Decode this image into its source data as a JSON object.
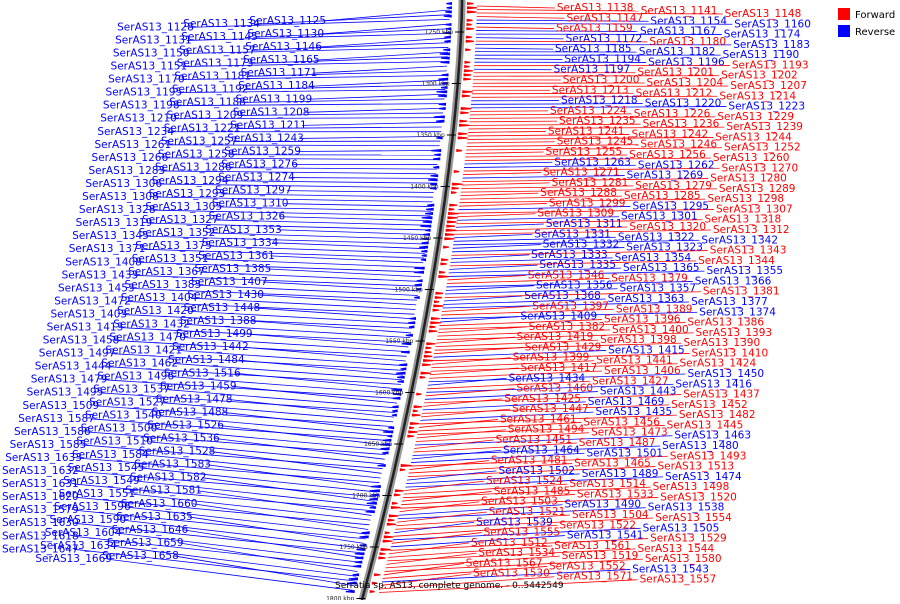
{
  "caption": "Serratia sp. AS13, complete genome. - 0..5442549",
  "legend": [
    {
      "label": "Forward",
      "color": "#ff0000"
    },
    {
      "label": "Reverse",
      "color": "#0000ff"
    }
  ],
  "colors": {
    "forward": "#ff0000",
    "reverse": "#0000ff",
    "backbone": "#444444"
  },
  "ticks": [
    "1250 kbp",
    "1300 kbp",
    "1350 kbp",
    "1400 kbp",
    "1450 kbp",
    "1500 kbp",
    "1550 kbp",
    "1600 kbp",
    "1650 kbp",
    "1700 kbp",
    "1750 kbp",
    "1800 kbp"
  ],
  "left_labels": [
    "SerAS13_1125",
    "SerAS13_1134",
    "SerAS13_1128",
    "SerAS13_1130",
    "SerAS13_1145",
    "SerAS13_1131",
    "SerAS13_1146",
    "SerAS13_1157",
    "SerAS13_1150",
    "SerAS13_1165",
    "SerAS13_1173",
    "SerAS13_1151",
    "SerAS13_1171",
    "SerAS13_1181",
    "SerAS13_1170",
    "SerAS13_1184",
    "SerAS13_1192",
    "SerAS13_1195",
    "SerAS13_1199",
    "SerAS13_1188",
    "SerAS13_1198",
    "SerAS13_1208",
    "SerAS13_1209",
    "SerAS13_1210",
    "SerAS13_1211",
    "SerAS13_1221",
    "SerAS13_1234",
    "SerAS13_1243",
    "SerAS13_1257",
    "SerAS13_1261",
    "SerAS13_1259",
    "SerAS13_1258",
    "SerAS13_1266",
    "SerAS13_1276",
    "SerAS13_1286",
    "SerAS13_1283",
    "SerAS13_1274",
    "SerAS13_1294",
    "SerAS13_1306",
    "SerAS13_1297",
    "SerAS13_1293",
    "SerAS13_1308",
    "SerAS13_1310",
    "SerAS13_1305",
    "SerAS13_1328",
    "SerAS13_1326",
    "SerAS13_1327",
    "SerAS13_1319",
    "SerAS13_1353",
    "SerAS13_1352",
    "SerAS13_1345",
    "SerAS13_1334",
    "SerAS13_1375",
    "SerAS13_1371",
    "SerAS13_1361",
    "SerAS13_1351",
    "SerAS13_1408",
    "SerAS13_1385",
    "SerAS13_1367",
    "SerAS13_1433",
    "SerAS13_1407",
    "SerAS13_1383",
    "SerAS13_1453",
    "SerAS13_1430",
    "SerAS13_1404",
    "SerAS13_1472",
    "SerAS13_1448",
    "SerAS13_1420",
    "SerAS13_1403",
    "SerAS13_1388",
    "SerAS13_1432",
    "SerAS13_1413",
    "SerAS13_1499",
    "SerAS13_1470",
    "SerAS13_1458",
    "SerAS13_1442",
    "SerAS13_1421",
    "SerAS13_1497",
    "SerAS13_1484",
    "SerAS13_1462",
    "SerAS13_1444",
    "SerAS13_1516",
    "SerAS13_1496",
    "SerAS13_1479",
    "SerAS13_1459",
    "SerAS13_1537",
    "SerAS13_1495",
    "SerAS13_1478",
    "SerAS13_1527",
    "SerAS13_1509",
    "SerAS13_1488",
    "SerAS13_1540",
    "SerAS13_1587",
    "SerAS13_1526",
    "SerAS13_1500",
    "SerAS13_1586",
    "SerAS13_1536",
    "SerAS13_1510",
    "SerAS13_1585",
    "SerAS13_1528",
    "SerAS13_1584",
    "SerAS13_1633",
    "SerAS13_1583",
    "SerAS13_1545",
    "SerAS13_1632",
    "SerAS13_1582",
    "SerAS13_1549",
    "SerAS13_1631",
    "SerAS13_1581",
    "SerAS13_1551",
    "SerAS13_1620",
    "SerAS13_1660",
    "SerAS13_1596",
    "SerAS13_1579",
    "SerAS13_1635",
    "SerAS13_1590",
    "SerAS13_1630",
    "SerAS13_1646",
    "SerAS13_1604",
    "SerAS13_1618",
    "SerAS13_1659",
    "SerAS13_1634",
    "SerAS13_1647",
    "SerAS13_1658",
    "SerAS13_1669"
  ],
  "right_labels": [
    {
      "text": "SerAS13_1138",
      "strand": "forward"
    },
    {
      "text": "SerAS13_1141",
      "strand": "forward"
    },
    {
      "text": "SerAS13_1148",
      "strand": "forward"
    },
    {
      "text": "SerAS13_1147",
      "strand": "forward"
    },
    {
      "text": "SerAS13_1154",
      "strand": "reverse"
    },
    {
      "text": "SerAS13_1160",
      "strand": "reverse"
    },
    {
      "text": "SerAS13_1159",
      "strand": "forward"
    },
    {
      "text": "SerAS13_1167",
      "strand": "reverse"
    },
    {
      "text": "SerAS13_1174",
      "strand": "reverse"
    },
    {
      "text": "SerAS13_1172",
      "strand": "reverse"
    },
    {
      "text": "SerAS13_1180",
      "strand": "forward"
    },
    {
      "text": "SerAS13_1183",
      "strand": "reverse"
    },
    {
      "text": "SerAS13_1185",
      "strand": "reverse"
    },
    {
      "text": "SerAS13_1182",
      "strand": "reverse"
    },
    {
      "text": "SerAS13_1190",
      "strand": "reverse"
    },
    {
      "text": "SerAS13_1194",
      "strand": "reverse"
    },
    {
      "text": "SerAS13_1196",
      "strand": "reverse"
    },
    {
      "text": "SerAS13_1193",
      "strand": "forward"
    },
    {
      "text": "SerAS13_1197",
      "strand": "reverse"
    },
    {
      "text": "SerAS13_1201",
      "strand": "forward"
    },
    {
      "text": "SerAS13_1202",
      "strand": "forward"
    },
    {
      "text": "SerAS13_1200",
      "strand": "forward"
    },
    {
      "text": "SerAS13_1204",
      "strand": "forward"
    },
    {
      "text": "SerAS13_1207",
      "strand": "forward"
    },
    {
      "text": "SerAS13_1213",
      "strand": "forward"
    },
    {
      "text": "SerAS13_1212",
      "strand": "forward"
    },
    {
      "text": "SerAS13_1214",
      "strand": "forward"
    },
    {
      "text": "SerAS13_1218",
      "strand": "reverse"
    },
    {
      "text": "SerAS13_1220",
      "strand": "reverse"
    },
    {
      "text": "SerAS13_1223",
      "strand": "reverse"
    },
    {
      "text": "SerAS13_1224",
      "strand": "forward"
    },
    {
      "text": "SerAS13_1226",
      "strand": "forward"
    },
    {
      "text": "SerAS13_1229",
      "strand": "forward"
    },
    {
      "text": "SerAS13_1235",
      "strand": "forward"
    },
    {
      "text": "SerAS13_1236",
      "strand": "forward"
    },
    {
      "text": "SerAS13_1239",
      "strand": "forward"
    },
    {
      "text": "SerAS13_1241",
      "strand": "forward"
    },
    {
      "text": "SerAS13_1242",
      "strand": "forward"
    },
    {
      "text": "SerAS13_1244",
      "strand": "forward"
    },
    {
      "text": "SerAS13_1245",
      "strand": "forward"
    },
    {
      "text": "SerAS13_1246",
      "strand": "forward"
    },
    {
      "text": "SerAS13_1252",
      "strand": "forward"
    },
    {
      "text": "SerAS13_1255",
      "strand": "forward"
    },
    {
      "text": "SerAS13_1256",
      "strand": "forward"
    },
    {
      "text": "SerAS13_1260",
      "strand": "forward"
    },
    {
      "text": "SerAS13_1263",
      "strand": "reverse"
    },
    {
      "text": "SerAS13_1262",
      "strand": "reverse"
    },
    {
      "text": "SerAS13_1270",
      "strand": "forward"
    },
    {
      "text": "SerAS13_1271",
      "strand": "forward"
    },
    {
      "text": "SerAS13_1269",
      "strand": "reverse"
    },
    {
      "text": "SerAS13_1280",
      "strand": "forward"
    },
    {
      "text": "SerAS13_1281",
      "strand": "forward"
    },
    {
      "text": "SerAS13_1279",
      "strand": "forward"
    },
    {
      "text": "SerAS13_1289",
      "strand": "forward"
    },
    {
      "text": "SerAS13_1288",
      "strand": "forward"
    },
    {
      "text": "SerAS13_1285",
      "strand": "forward"
    },
    {
      "text": "SerAS13_1298",
      "strand": "forward"
    },
    {
      "text": "SerAS13_1299",
      "strand": "forward"
    },
    {
      "text": "SerAS13_1295",
      "strand": "reverse"
    },
    {
      "text": "SerAS13_1307",
      "strand": "forward"
    },
    {
      "text": "SerAS13_1309",
      "strand": "forward"
    },
    {
      "text": "SerAS13_1301",
      "strand": "reverse"
    },
    {
      "text": "SerAS13_1318",
      "strand": "forward"
    },
    {
      "text": "SerAS13_1311",
      "strand": "reverse"
    },
    {
      "text": "SerAS13_1320",
      "strand": "forward"
    },
    {
      "text": "SerAS13_1312",
      "strand": "forward"
    },
    {
      "text": "SerAS13_1331",
      "strand": "reverse"
    },
    {
      "text": "SerAS13_1322",
      "strand": "reverse"
    },
    {
      "text": "SerAS13_1342",
      "strand": "reverse"
    },
    {
      "text": "SerAS13_1332",
      "strand": "reverse"
    },
    {
      "text": "SerAS13_1323",
      "strand": "reverse"
    },
    {
      "text": "SerAS13_1343",
      "strand": "forward"
    },
    {
      "text": "SerAS13_1333",
      "strand": "reverse"
    },
    {
      "text": "SerAS13_1354",
      "strand": "reverse"
    },
    {
      "text": "SerAS13_1344",
      "strand": "forward"
    },
    {
      "text": "SerAS13_1335",
      "strand": "reverse"
    },
    {
      "text": "SerAS13_1365",
      "strand": "reverse"
    },
    {
      "text": "SerAS13_1355",
      "strand": "reverse"
    },
    {
      "text": "SerAS13_1346",
      "strand": "forward"
    },
    {
      "text": "SerAS13_1379",
      "strand": "forward"
    },
    {
      "text": "SerAS13_1366",
      "strand": "reverse"
    },
    {
      "text": "SerAS13_1356",
      "strand": "reverse"
    },
    {
      "text": "SerAS13_1357",
      "strand": "reverse"
    },
    {
      "text": "SerAS13_1381",
      "strand": "forward"
    },
    {
      "text": "SerAS13_1368",
      "strand": "reverse"
    },
    {
      "text": "SerAS13_1363",
      "strand": "reverse"
    },
    {
      "text": "SerAS13_1377",
      "strand": "reverse"
    },
    {
      "text": "SerAS13_1397",
      "strand": "forward"
    },
    {
      "text": "SerAS13_1389",
      "strand": "forward"
    },
    {
      "text": "SerAS13_1374",
      "strand": "reverse"
    },
    {
      "text": "SerAS13_1409",
      "strand": "reverse"
    },
    {
      "text": "SerAS13_1396",
      "strand": "forward"
    },
    {
      "text": "SerAS13_1386",
      "strand": "forward"
    },
    {
      "text": "SerAS13_1382",
      "strand": "forward"
    },
    {
      "text": "SerAS13_1400",
      "strand": "forward"
    },
    {
      "text": "SerAS13_1393",
      "strand": "forward"
    },
    {
      "text": "SerAS13_1419",
      "strand": "forward"
    },
    {
      "text": "SerAS13_1398",
      "strand": "forward"
    },
    {
      "text": "SerAS13_1390",
      "strand": "forward"
    },
    {
      "text": "SerAS13_1429",
      "strand": "forward"
    },
    {
      "text": "SerAS13_1415",
      "strand": "reverse"
    },
    {
      "text": "SerAS13_1410",
      "strand": "forward"
    },
    {
      "text": "SerAS13_1399",
      "strand": "forward"
    },
    {
      "text": "SerAS13_1441",
      "strand": "forward"
    },
    {
      "text": "SerAS13_1424",
      "strand": "forward"
    },
    {
      "text": "SerAS13_1417",
      "strand": "forward"
    },
    {
      "text": "SerAS13_1406",
      "strand": "forward"
    },
    {
      "text": "SerAS13_1450",
      "strand": "reverse"
    },
    {
      "text": "SerAS13_1434",
      "strand": "reverse"
    },
    {
      "text": "SerAS13_1427",
      "strand": "forward"
    },
    {
      "text": "SerAS13_1416",
      "strand": "reverse"
    },
    {
      "text": "SerAS13_1460",
      "strand": "forward"
    },
    {
      "text": "SerAS13_1443",
      "strand": "reverse"
    },
    {
      "text": "SerAS13_1437",
      "strand": "forward"
    },
    {
      "text": "SerAS13_1425",
      "strand": "forward"
    },
    {
      "text": "SerAS13_1469",
      "strand": "reverse"
    },
    {
      "text": "SerAS13_1452",
      "strand": "forward"
    },
    {
      "text": "SerAS13_1447",
      "strand": "forward"
    },
    {
      "text": "SerAS13_1435",
      "strand": "reverse"
    },
    {
      "text": "SerAS13_1482",
      "strand": "forward"
    },
    {
      "text": "SerAS13_1461",
      "strand": "forward"
    },
    {
      "text": "SerAS13_1456",
      "strand": "forward"
    },
    {
      "text": "SerAS13_1445",
      "strand": "forward"
    },
    {
      "text": "SerAS13_1494",
      "strand": "forward"
    },
    {
      "text": "SerAS13_1473",
      "strand": "forward"
    },
    {
      "text": "SerAS13_1463",
      "strand": "reverse"
    },
    {
      "text": "SerAS13_1451",
      "strand": "forward"
    },
    {
      "text": "SerAS13_1487",
      "strand": "forward"
    },
    {
      "text": "SerAS13_1480",
      "strand": "reverse"
    },
    {
      "text": "SerAS13_1464",
      "strand": "reverse"
    },
    {
      "text": "SerAS13_1501",
      "strand": "reverse"
    },
    {
      "text": "SerAS13_1493",
      "strand": "forward"
    },
    {
      "text": "SerAS13_1481",
      "strand": "forward"
    },
    {
      "text": "SerAS13_1465",
      "strand": "forward"
    },
    {
      "text": "SerAS13_1513",
      "strand": "forward"
    },
    {
      "text": "SerAS13_1502",
      "strand": "reverse"
    },
    {
      "text": "SerAS13_1489",
      "strand": "reverse"
    },
    {
      "text": "SerAS13_1474",
      "strand": "reverse"
    },
    {
      "text": "SerAS13_1524",
      "strand": "forward"
    },
    {
      "text": "SerAS13_1514",
      "strand": "forward"
    },
    {
      "text": "SerAS13_1498",
      "strand": "forward"
    },
    {
      "text": "SerAS13_1485",
      "strand": "forward"
    },
    {
      "text": "SerAS13_1533",
      "strand": "forward"
    },
    {
      "text": "SerAS13_1520",
      "strand": "forward"
    },
    {
      "text": "SerAS13_1503",
      "strand": "forward"
    },
    {
      "text": "SerAS13_1490",
      "strand": "reverse"
    },
    {
      "text": "SerAS13_1538",
      "strand": "reverse"
    },
    {
      "text": "SerAS13_1521",
      "strand": "forward"
    },
    {
      "text": "SerAS13_1504",
      "strand": "forward"
    },
    {
      "text": "SerAS13_1554",
      "strand": "forward"
    },
    {
      "text": "SerAS13_1539",
      "strand": "reverse"
    },
    {
      "text": "SerAS13_1522",
      "strand": "forward"
    },
    {
      "text": "SerAS13_1505",
      "strand": "reverse"
    },
    {
      "text": "SerAS13_1555",
      "strand": "forward"
    },
    {
      "text": "SerAS13_1541",
      "strand": "reverse"
    },
    {
      "text": "SerAS13_1529",
      "strand": "forward"
    },
    {
      "text": "SerAS13_1512",
      "strand": "forward"
    },
    {
      "text": "SerAS13_1561",
      "strand": "forward"
    },
    {
      "text": "SerAS13_1544",
      "strand": "forward"
    },
    {
      "text": "SerAS13_1534",
      "strand": "forward"
    },
    {
      "text": "SerAS13_1519",
      "strand": "forward"
    },
    {
      "text": "SerAS13_1580",
      "strand": "forward"
    },
    {
      "text": "SerAS13_1567",
      "strand": "forward"
    },
    {
      "text": "SerAS13_1552",
      "strand": "forward"
    },
    {
      "text": "SerAS13_1543",
      "strand": "reverse"
    },
    {
      "text": "SerAS13_1530",
      "strand": "forward"
    },
    {
      "text": "SerAS13_1571",
      "strand": "forward"
    },
    {
      "text": "SerAS13_1557",
      "strand": "forward"
    }
  ]
}
